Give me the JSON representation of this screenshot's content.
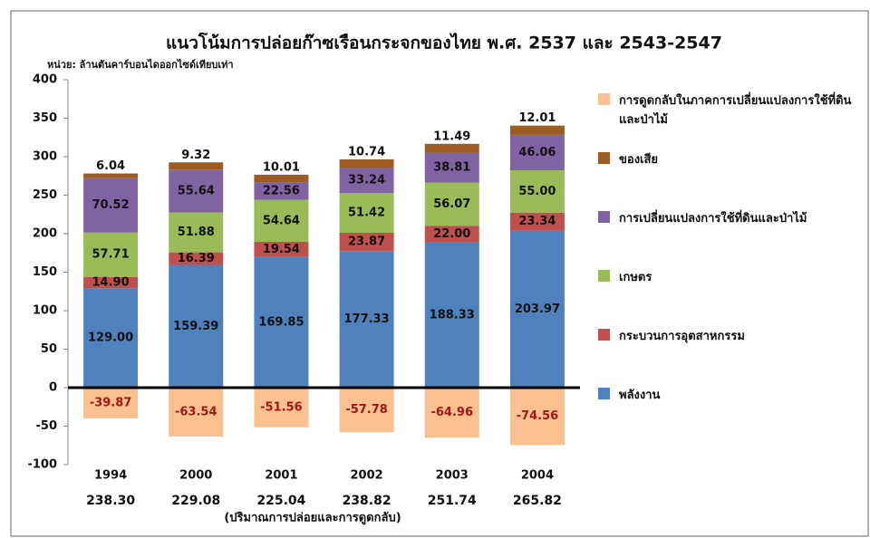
{
  "chart_data": {
    "type": "stacked_bar",
    "title": "แนวโน้มการปล่อยก๊าซเรือนกระจกของไทย พ.ศ. 2537 และ 2543-2547",
    "subtitle": "หน่วย: ล้านตันคาร์บอนไดออกไซด์เทียบเท่า",
    "categories": [
      "1994",
      "2000",
      "2001",
      "2002",
      "2003",
      "2004"
    ],
    "series": [
      {
        "name": "พลังงาน",
        "color": "#4f81bd",
        "values": [
          129.0,
          159.39,
          169.85,
          177.33,
          188.33,
          203.97
        ],
        "value_labels": [
          "129.00",
          "159.39",
          "169.85",
          "177.33",
          "188.33",
          "203.97"
        ]
      },
      {
        "name": "กระบวนการอุตสาหกรรม",
        "color": "#c0504d",
        "values": [
          14.9,
          16.39,
          19.54,
          23.87,
          22.0,
          23.34
        ],
        "value_labels": [
          "14.90",
          "16.39",
          "19.54",
          "23.87",
          "22.00",
          "23.34"
        ]
      },
      {
        "name": "เกษตร",
        "color": "#9bbb59",
        "values": [
          57.71,
          51.88,
          54.64,
          51.42,
          56.07,
          55.0
        ],
        "value_labels": [
          "57.71",
          "51.88",
          "54.64",
          "51.42",
          "56.07",
          "55.00"
        ]
      },
      {
        "name": "การเปลี่ยนแปลงการใช้ที่ดินและป่าไม้",
        "color": "#8064a2",
        "values": [
          70.52,
          55.64,
          22.56,
          33.24,
          38.81,
          46.06
        ],
        "value_labels": [
          "70.52",
          "55.64",
          "22.56",
          "33.24",
          "38.81",
          "46.06"
        ]
      },
      {
        "name": "ของเสีย",
        "color": "#9c5c24",
        "values": [
          6.04,
          9.32,
          10.01,
          10.74,
          11.49,
          12.01
        ],
        "value_labels": [
          "6.04",
          "9.32",
          "10.01",
          "10.74",
          "11.49",
          "12.01"
        ]
      },
      {
        "name": "การดูดกลับในภาคการเปลี่ยนแปลงการใช้ที่ดินและป่าไม้",
        "color": "#fac090",
        "values": [
          -39.87,
          -63.54,
          -51.56,
          -57.78,
          -64.96,
          -74.56
        ],
        "value_labels": [
          "-39.87",
          "-63.54",
          "-51.56",
          "-57.78",
          "-64.96",
          "-74.56"
        ]
      }
    ],
    "totals": [
      "238.30",
      "229.08",
      "225.04",
      "238.82",
      "251.74",
      "265.82"
    ],
    "totals_label": "(ปริมาณการปล่อยและการดูดกลับ)",
    "ylim": [
      -100,
      400
    ],
    "yticks": [
      -100,
      -50,
      0,
      50,
      100,
      150,
      200,
      250,
      300,
      350,
      400
    ],
    "grid": false,
    "legend": "right"
  }
}
